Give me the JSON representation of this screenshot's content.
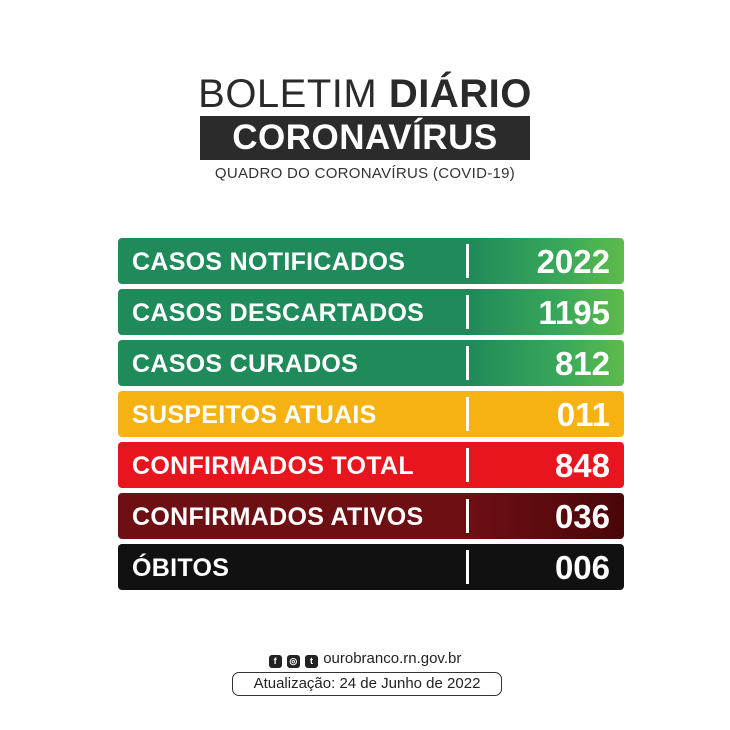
{
  "header": {
    "title_light": "BOLETIM",
    "title_bold": "DIÁRIO",
    "title_box": "CORONAVÍRUS",
    "subtitle": "QUADRO DO CORONAVÍRUS (COVID-19)"
  },
  "rows": [
    {
      "label": "CASOS NOTIFICADOS",
      "value": "2022",
      "color": "#1f8a5a"
    },
    {
      "label": "CASOS DESCARTADOS",
      "value": "1195",
      "color": "#1f8a5a"
    },
    {
      "label": "CASOS CURADOS",
      "value": "812",
      "color": "#1f8a5a"
    },
    {
      "label": "SUSPEITOS ATUAIS",
      "value": "011",
      "color": "#f6b213"
    },
    {
      "label": "CONFIRMADOS TOTAL",
      "value": "848",
      "color": "#e8141e"
    },
    {
      "label": "CONFIRMADOS ATIVOS",
      "value": "036",
      "color": "#6e0f14"
    },
    {
      "label": "ÓBITOS",
      "value": "006",
      "color": "#111111"
    }
  ],
  "footer": {
    "social_icons": [
      "facebook-icon",
      "instagram-icon",
      "twitter-icon"
    ],
    "website": "ourobranco.rn.gov.br",
    "update": "Atualização: 24 de Junho de 2022"
  }
}
